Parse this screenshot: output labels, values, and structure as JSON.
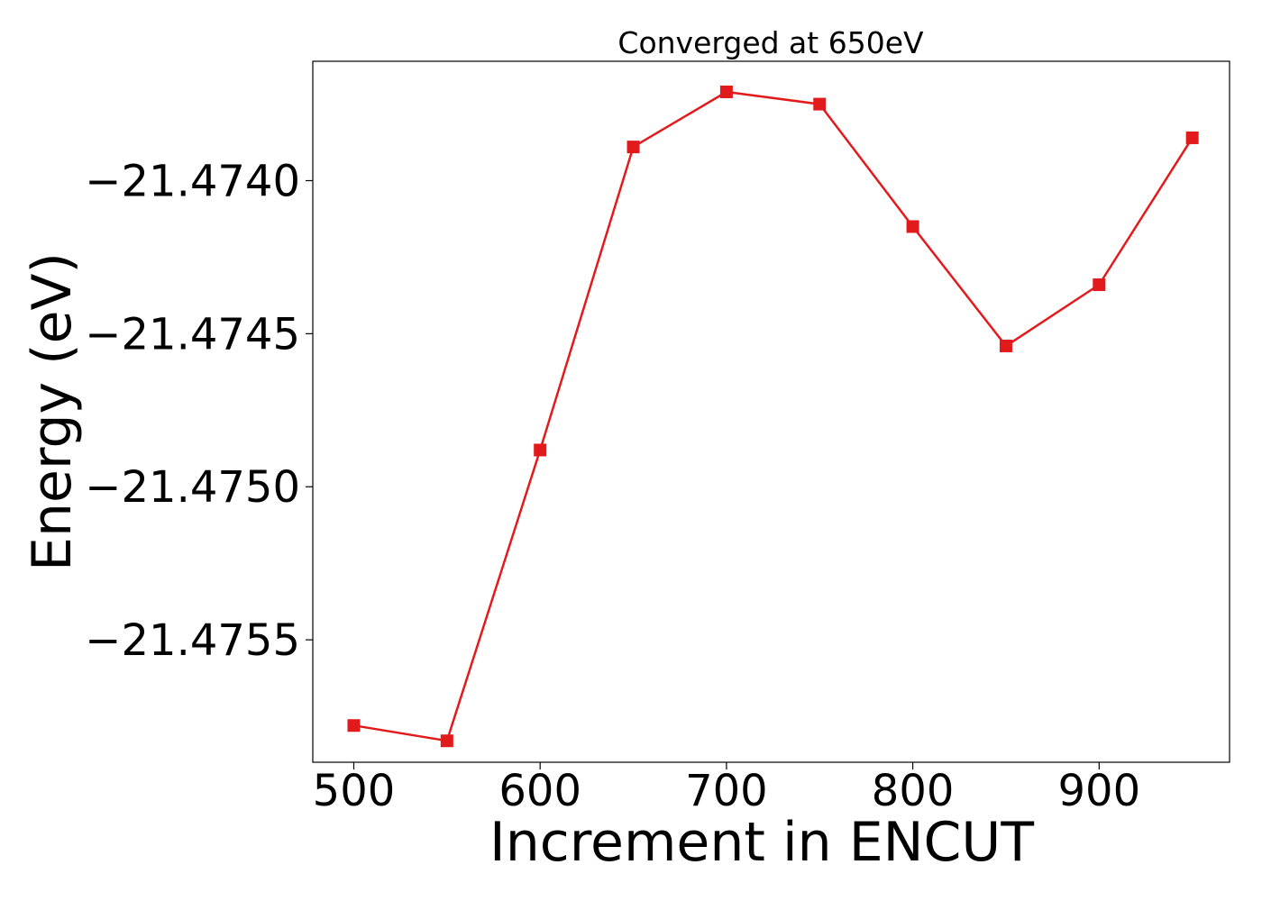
{
  "chart_data": {
    "type": "line",
    "title": "Converged at 650eV",
    "xlabel": "Increment in ENCUT",
    "ylabel": "Energy (eV)",
    "x": [
      500,
      550,
      600,
      650,
      700,
      750,
      800,
      850,
      900,
      950
    ],
    "series": [
      {
        "values": [
          -21.47578,
          -21.47583,
          -21.47488,
          -21.47389,
          -21.47371,
          -21.47375,
          -21.47415,
          -21.47454,
          -21.47434,
          -21.47386
        ],
        "color": "#e31a1c",
        "marker": "square"
      }
    ],
    "xlim": [
      478,
      970
    ],
    "ylim": [
      -21.4759,
      -21.47361
    ],
    "xticks": [
      500,
      600,
      700,
      800,
      900
    ],
    "xtick_labels": [
      "500",
      "600",
      "700",
      "800",
      "900"
    ],
    "yticks": [
      -21.474,
      -21.4745,
      -21.475,
      -21.4755
    ],
    "ytick_labels": [
      "−21.4740",
      "−21.4745",
      "−21.4750",
      "−21.4755"
    ],
    "grid": false,
    "legend": false
  }
}
